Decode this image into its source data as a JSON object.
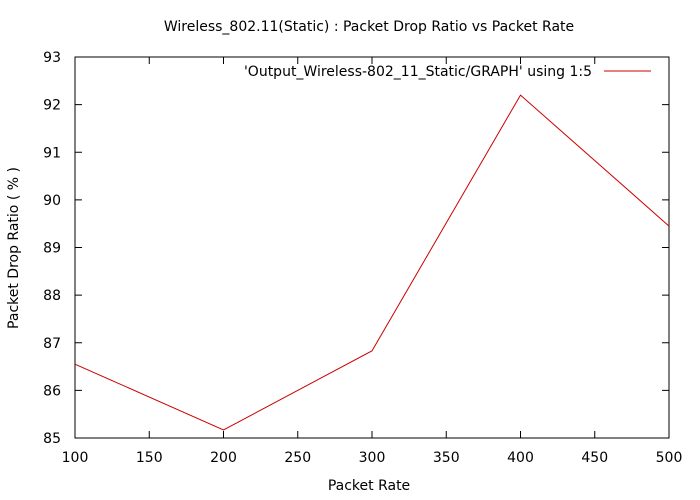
{
  "chart_data": {
    "type": "line",
    "title": "Wireless_802.11(Static) : Packet Drop Ratio vs Packet Rate",
    "xlabel": "Packet Rate",
    "ylabel": "Packet Drop Ratio ( % )",
    "xlim": [
      100,
      500
    ],
    "ylim": [
      85,
      93
    ],
    "xticks": [
      "100",
      "150",
      "200",
      "250",
      "300",
      "350",
      "400",
      "450",
      "500"
    ],
    "yticks": [
      "85",
      "86",
      "87",
      "88",
      "89",
      "90",
      "91",
      "92",
      "93"
    ],
    "grid": false,
    "legend_position": "top-right",
    "series": [
      {
        "name": "'Output_Wireless-802_11_Static/GRAPH' using 1:5",
        "color": "#cc0000",
        "x": [
          100,
          200,
          300,
          400,
          500
        ],
        "y": [
          86.55,
          85.17,
          86.83,
          92.2,
          89.45
        ]
      }
    ]
  }
}
